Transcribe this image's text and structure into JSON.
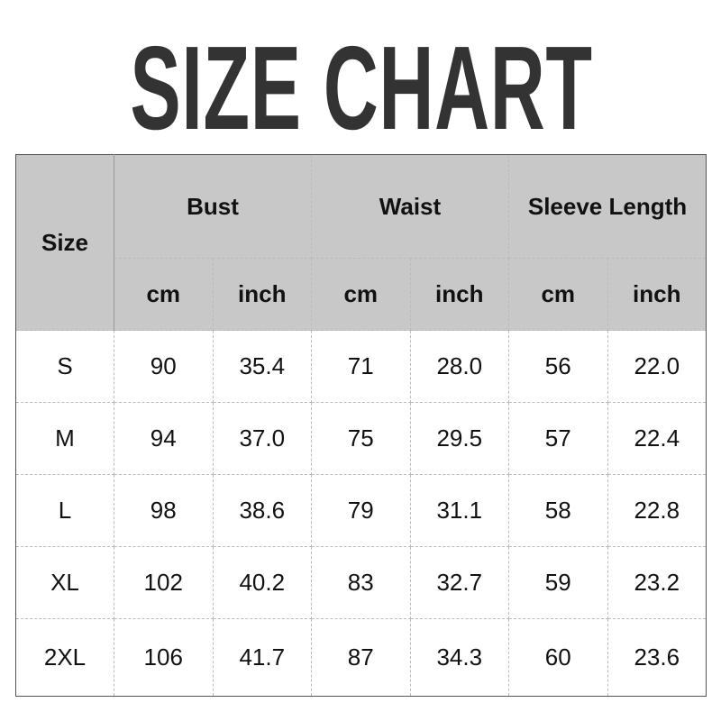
{
  "title": "SIZE CHART",
  "table": {
    "size_header": "Size",
    "groups": [
      "Bust",
      "Waist",
      "Sleeve Length"
    ],
    "units": [
      "cm",
      "inch",
      "cm",
      "inch",
      "cm",
      "inch"
    ],
    "rows": [
      [
        "S",
        "90",
        "35.4",
        "71",
        "28.0",
        "56",
        "22.0"
      ],
      [
        "M",
        "94",
        "37.0",
        "75",
        "29.5",
        "57",
        "22.4"
      ],
      [
        "L",
        "98",
        "38.6",
        "79",
        "31.1",
        "58",
        "22.8"
      ],
      [
        "XL",
        "102",
        "40.2",
        "83",
        "32.7",
        "59",
        "23.2"
      ],
      [
        "2XL",
        "106",
        "41.7",
        "87",
        "34.3",
        "60",
        "23.6"
      ]
    ]
  },
  "colors": {
    "header_bg": "#c8c8c8",
    "title": "#333333"
  }
}
